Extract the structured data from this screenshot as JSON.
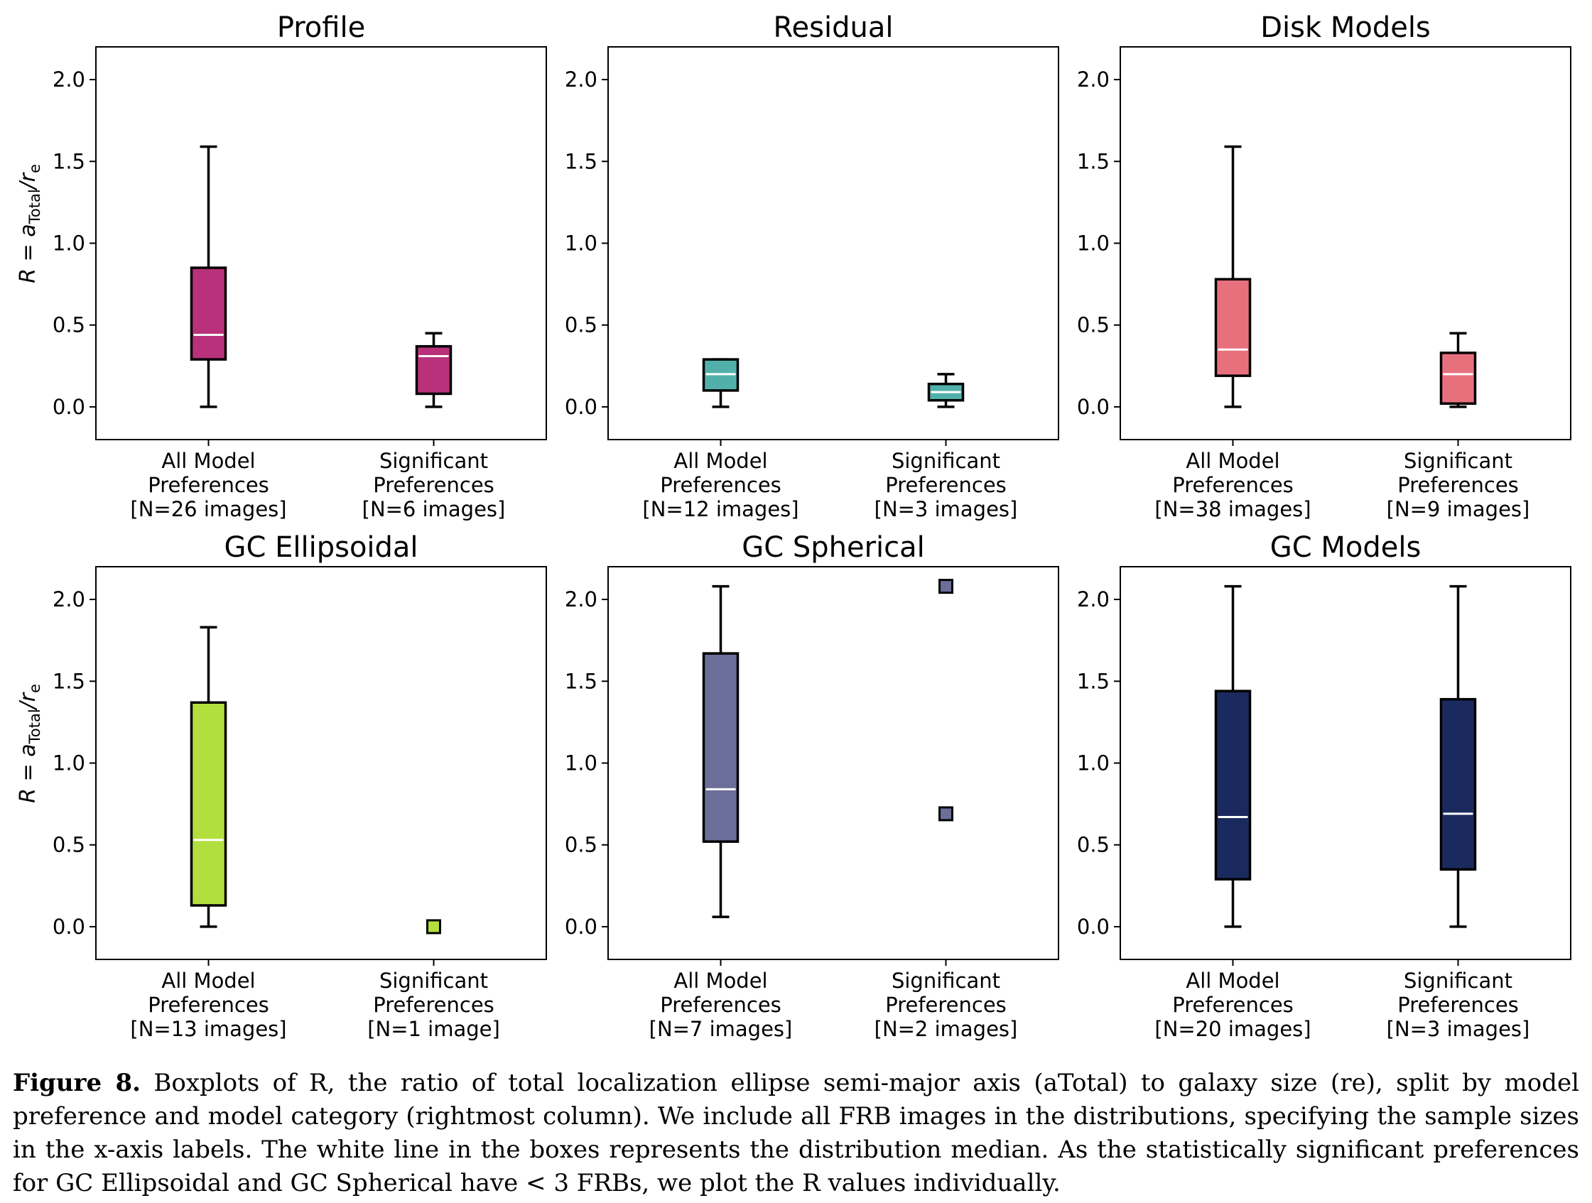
{
  "chart_data": [
    {
      "type": "box",
      "title": "Profile",
      "ylabel_prefix": "R = a",
      "ylabel_sub1": "Total",
      "ylabel_mid": "/r",
      "ylabel_sub2": "e",
      "ylim": [
        -0.2,
        2.2
      ],
      "yticks": [
        "0.0",
        "0.5",
        "1.0",
        "1.5",
        "2.0"
      ],
      "color": "#b8317a",
      "categories": [
        [
          "All Model",
          "Preferences",
          "[N=26 images]"
        ],
        [
          "Significant",
          "Preferences",
          "[N=6 images]"
        ]
      ],
      "boxes": [
        {
          "kind": "box",
          "whislo": 0.0,
          "q1": 0.29,
          "med": 0.44,
          "q3": 0.85,
          "whishi": 1.59
        },
        {
          "kind": "box",
          "whislo": 0.0,
          "q1": 0.08,
          "med": 0.31,
          "q3": 0.37,
          "whishi": 0.45
        }
      ]
    },
    {
      "type": "box",
      "title": "Residual",
      "ylim": [
        -0.2,
        2.2
      ],
      "yticks": [
        "0.0",
        "0.5",
        "1.0",
        "1.5",
        "2.0"
      ],
      "color": "#52b0aa",
      "categories": [
        [
          "All Model",
          "Preferences",
          "[N=12 images]"
        ],
        [
          "Significant",
          "Preferences",
          "[N=3 images]"
        ]
      ],
      "boxes": [
        {
          "kind": "box",
          "whislo": 0.0,
          "q1": 0.1,
          "med": 0.2,
          "q3": 0.29,
          "whishi": 0.29
        },
        {
          "kind": "box",
          "whislo": 0.0,
          "q1": 0.04,
          "med": 0.09,
          "q3": 0.14,
          "whishi": 0.2
        }
      ]
    },
    {
      "type": "box",
      "title": "Disk Models",
      "ylim": [
        -0.2,
        2.2
      ],
      "yticks": [
        "0.0",
        "0.5",
        "1.0",
        "1.5",
        "2.0"
      ],
      "color": "#e8707d",
      "categories": [
        [
          "All Model",
          "Preferences",
          "[N=38 images]"
        ],
        [
          "Significant",
          "Preferences",
          "[N=9 images]"
        ]
      ],
      "boxes": [
        {
          "kind": "box",
          "whislo": 0.0,
          "q1": 0.19,
          "med": 0.35,
          "q3": 0.78,
          "whishi": 1.59
        },
        {
          "kind": "box",
          "whislo": 0.0,
          "q1": 0.02,
          "med": 0.2,
          "q3": 0.33,
          "whishi": 0.45
        }
      ]
    },
    {
      "type": "box",
      "title": "GC Ellipsoidal",
      "ylabel_prefix": "R = a",
      "ylabel_sub1": "Total",
      "ylabel_mid": "/r",
      "ylabel_sub2": "e",
      "ylim": [
        -0.2,
        2.2
      ],
      "yticks": [
        "0.0",
        "0.5",
        "1.0",
        "1.5",
        "2.0"
      ],
      "color": "#b3df3e",
      "categories": [
        [
          "All Model",
          "Preferences",
          "[N=13 images]"
        ],
        [
          "Significant",
          "Preferences",
          "[N=1 image]"
        ]
      ],
      "boxes": [
        {
          "kind": "box",
          "whislo": 0.0,
          "q1": 0.13,
          "med": 0.53,
          "q3": 1.37,
          "whishi": 1.83
        },
        {
          "kind": "points",
          "points": [
            0.0
          ]
        }
      ]
    },
    {
      "type": "box",
      "title": "GC Spherical",
      "ylim": [
        -0.2,
        2.2
      ],
      "yticks": [
        "0.0",
        "0.5",
        "1.0",
        "1.5",
        "2.0"
      ],
      "color": "#6b6e98",
      "categories": [
        [
          "All Model",
          "Preferences",
          "[N=7 images]"
        ],
        [
          "Significant",
          "Preferences",
          "[N=2 images]"
        ]
      ],
      "boxes": [
        {
          "kind": "box",
          "whislo": 0.06,
          "q1": 0.52,
          "med": 0.84,
          "q3": 1.67,
          "whishi": 2.08
        },
        {
          "kind": "points",
          "points": [
            2.08,
            0.69
          ]
        }
      ]
    },
    {
      "type": "box",
      "title": "GC Models",
      "ylim": [
        -0.2,
        2.2
      ],
      "yticks": [
        "0.0",
        "0.5",
        "1.0",
        "1.5",
        "2.0"
      ],
      "color": "#1b2a5e",
      "categories": [
        [
          "All Model",
          "Preferences",
          "[N=20 images]"
        ],
        [
          "Significant",
          "Preferences",
          "[N=3 images]"
        ]
      ],
      "boxes": [
        {
          "kind": "box",
          "whislo": 0.0,
          "q1": 0.29,
          "med": 0.67,
          "q3": 1.44,
          "whishi": 2.08
        },
        {
          "kind": "box",
          "whislo": 0.0,
          "q1": 0.35,
          "med": 0.69,
          "q3": 1.39,
          "whishi": 2.08
        }
      ]
    }
  ],
  "caption": {
    "label": "Figure 8.",
    "text": "Boxplots of R, the ratio of total localization ellipse semi-major axis (aTotal) to galaxy size (re), split by model preference and model category (rightmost column). We include all FRB images in the distributions, specifying the sample sizes in the x-axis labels. The white line in the boxes represents the distribution median. As the statistically significant preferences for GC Ellipsoidal and GC Spherical have < 3 FRBs, we plot the R values individually."
  }
}
